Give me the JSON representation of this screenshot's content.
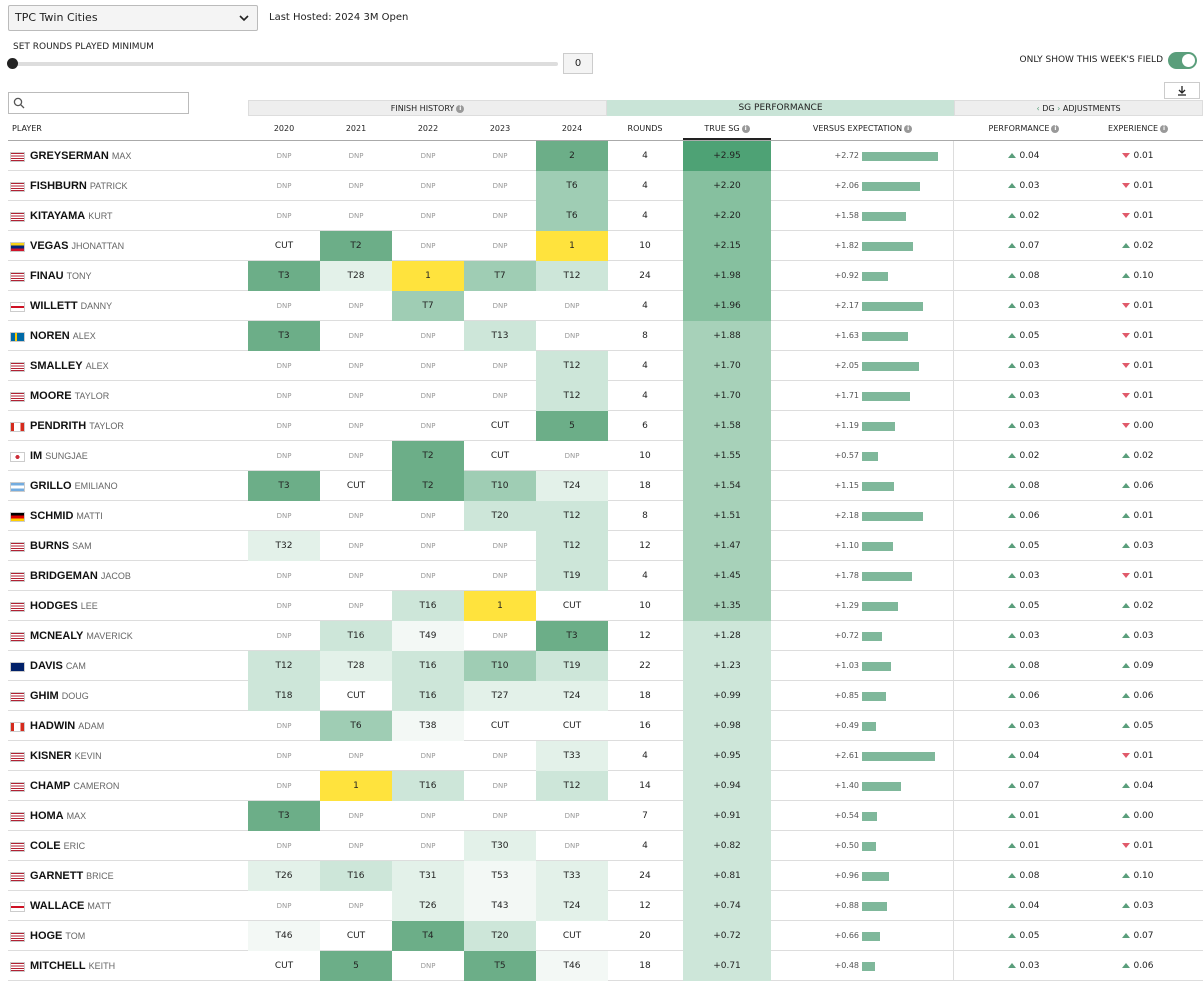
{
  "course_select": {
    "value": "TPC Twin Cities"
  },
  "last_hosted": "Last Hosted: 2024 3M Open",
  "rounds_min": {
    "label": "SET ROUNDS PLAYED MINIMUM",
    "value": "0"
  },
  "field_toggle": {
    "label": "ONLY SHOW THIS WEEK'S FIELD",
    "on": true
  },
  "search": {
    "placeholder": ""
  },
  "groups": {
    "finish_history": "FINISH HISTORY",
    "sg_performance": "SG PERFORMANCE",
    "dg_adjustments": "DG",
    "adjustments_suffix": "ADJUSTMENTS"
  },
  "columns": {
    "player": "PLAYER",
    "y2020": "2020",
    "y2021": "2021",
    "y2022": "2022",
    "y2023": "2023",
    "y2024": "2024",
    "rounds": "ROUNDS",
    "true_sg": "TRUE SG",
    "versus": "VERSUS EXPECTATION",
    "performance": "PERFORMANCE",
    "experience": "EXPERIENCE"
  },
  "colors": {
    "accent": "#5a9e7b",
    "win": "#ffe33d",
    "down": "#e05a6a"
  },
  "rows": [
    {
      "last": "GREYSERMAN",
      "first": "MAX",
      "flag": "us",
      "finishes": [
        "DNP",
        "DNP",
        "DNP",
        "DNP",
        "2"
      ],
      "rounds": "4",
      "sg": "+2.95",
      "vs": "+2.72",
      "vs_val": 2.72,
      "perf": "0.04",
      "perf_dir": "up",
      "exp": "0.01",
      "exp_dir": "down"
    },
    {
      "last": "FISHBURN",
      "first": "PATRICK",
      "flag": "us",
      "finishes": [
        "DNP",
        "DNP",
        "DNP",
        "DNP",
        "T6"
      ],
      "rounds": "4",
      "sg": "+2.20",
      "vs": "+2.06",
      "vs_val": 2.06,
      "perf": "0.03",
      "perf_dir": "up",
      "exp": "0.01",
      "exp_dir": "down"
    },
    {
      "last": "KITAYAMA",
      "first": "KURT",
      "flag": "us",
      "finishes": [
        "DNP",
        "DNP",
        "DNP",
        "DNP",
        "T6"
      ],
      "rounds": "4",
      "sg": "+2.20",
      "vs": "+1.58",
      "vs_val": 1.58,
      "perf": "0.02",
      "perf_dir": "up",
      "exp": "0.01",
      "exp_dir": "down"
    },
    {
      "last": "VEGAS",
      "first": "JHONATTAN",
      "flag": "ve",
      "finishes": [
        "CUT",
        "T2",
        "DNP",
        "DNP",
        "1"
      ],
      "rounds": "10",
      "sg": "+2.15",
      "vs": "+1.82",
      "vs_val": 1.82,
      "perf": "0.07",
      "perf_dir": "up",
      "exp": "0.02",
      "exp_dir": "up"
    },
    {
      "last": "FINAU",
      "first": "TONY",
      "flag": "us",
      "finishes": [
        "T3",
        "T28",
        "1",
        "T7",
        "T12"
      ],
      "rounds": "24",
      "sg": "+1.98",
      "vs": "+0.92",
      "vs_val": 0.92,
      "perf": "0.08",
      "perf_dir": "up",
      "exp": "0.10",
      "exp_dir": "up"
    },
    {
      "last": "WILLETT",
      "first": "DANNY",
      "flag": "en",
      "finishes": [
        "DNP",
        "DNP",
        "T7",
        "DNP",
        "DNP"
      ],
      "rounds": "4",
      "sg": "+1.96",
      "vs": "+2.17",
      "vs_val": 2.17,
      "perf": "0.03",
      "perf_dir": "up",
      "exp": "0.01",
      "exp_dir": "down"
    },
    {
      "last": "NOREN",
      "first": "ALEX",
      "flag": "se",
      "finishes": [
        "T3",
        "DNP",
        "DNP",
        "T13",
        "DNP"
      ],
      "rounds": "8",
      "sg": "+1.88",
      "vs": "+1.63",
      "vs_val": 1.63,
      "perf": "0.05",
      "perf_dir": "up",
      "exp": "0.01",
      "exp_dir": "down"
    },
    {
      "last": "SMALLEY",
      "first": "ALEX",
      "flag": "us",
      "finishes": [
        "DNP",
        "DNP",
        "DNP",
        "DNP",
        "T12"
      ],
      "rounds": "4",
      "sg": "+1.70",
      "vs": "+2.05",
      "vs_val": 2.05,
      "perf": "0.03",
      "perf_dir": "up",
      "exp": "0.01",
      "exp_dir": "down"
    },
    {
      "last": "MOORE",
      "first": "TAYLOR",
      "flag": "us",
      "finishes": [
        "DNP",
        "DNP",
        "DNP",
        "DNP",
        "T12"
      ],
      "rounds": "4",
      "sg": "+1.70",
      "vs": "+1.71",
      "vs_val": 1.71,
      "perf": "0.03",
      "perf_dir": "up",
      "exp": "0.01",
      "exp_dir": "down"
    },
    {
      "last": "PENDRITH",
      "first": "TAYLOR",
      "flag": "ca",
      "finishes": [
        "DNP",
        "DNP",
        "DNP",
        "CUT",
        "5"
      ],
      "rounds": "6",
      "sg": "+1.58",
      "vs": "+1.19",
      "vs_val": 1.19,
      "perf": "0.03",
      "perf_dir": "up",
      "exp": "0.00",
      "exp_dir": "down"
    },
    {
      "last": "IM",
      "first": "SUNGJAE",
      "flag": "kr",
      "finishes": [
        "DNP",
        "DNP",
        "T2",
        "CUT",
        "DNP"
      ],
      "rounds": "10",
      "sg": "+1.55",
      "vs": "+0.57",
      "vs_val": 0.57,
      "perf": "0.02",
      "perf_dir": "up",
      "exp": "0.02",
      "exp_dir": "up"
    },
    {
      "last": "GRILLO",
      "first": "EMILIANO",
      "flag": "ar",
      "finishes": [
        "T3",
        "CUT",
        "T2",
        "T10",
        "T24"
      ],
      "rounds": "18",
      "sg": "+1.54",
      "vs": "+1.15",
      "vs_val": 1.15,
      "perf": "0.08",
      "perf_dir": "up",
      "exp": "0.06",
      "exp_dir": "up"
    },
    {
      "last": "SCHMID",
      "first": "MATTI",
      "flag": "de",
      "finishes": [
        "DNP",
        "DNP",
        "DNP",
        "T20",
        "T12"
      ],
      "rounds": "8",
      "sg": "+1.51",
      "vs": "+2.18",
      "vs_val": 2.18,
      "perf": "0.06",
      "perf_dir": "up",
      "exp": "0.01",
      "exp_dir": "up"
    },
    {
      "last": "BURNS",
      "first": "SAM",
      "flag": "us",
      "finishes": [
        "T32",
        "DNP",
        "DNP",
        "DNP",
        "T12"
      ],
      "rounds": "12",
      "sg": "+1.47",
      "vs": "+1.10",
      "vs_val": 1.1,
      "perf": "0.05",
      "perf_dir": "up",
      "exp": "0.03",
      "exp_dir": "up"
    },
    {
      "last": "BRIDGEMAN",
      "first": "JACOB",
      "flag": "us",
      "finishes": [
        "DNP",
        "DNP",
        "DNP",
        "DNP",
        "T19"
      ],
      "rounds": "4",
      "sg": "+1.45",
      "vs": "+1.78",
      "vs_val": 1.78,
      "perf": "0.03",
      "perf_dir": "up",
      "exp": "0.01",
      "exp_dir": "down"
    },
    {
      "last": "HODGES",
      "first": "LEE",
      "flag": "us",
      "finishes": [
        "DNP",
        "DNP",
        "T16",
        "1",
        "CUT"
      ],
      "rounds": "10",
      "sg": "+1.35",
      "vs": "+1.29",
      "vs_val": 1.29,
      "perf": "0.05",
      "perf_dir": "up",
      "exp": "0.02",
      "exp_dir": "up"
    },
    {
      "last": "MCNEALY",
      "first": "MAVERICK",
      "flag": "us",
      "finishes": [
        "DNP",
        "T16",
        "T49",
        "DNP",
        "T3"
      ],
      "rounds": "12",
      "sg": "+1.28",
      "vs": "+0.72",
      "vs_val": 0.72,
      "perf": "0.03",
      "perf_dir": "up",
      "exp": "0.03",
      "exp_dir": "up"
    },
    {
      "last": "DAVIS",
      "first": "CAM",
      "flag": "au",
      "finishes": [
        "T12",
        "T28",
        "T16",
        "T10",
        "T19"
      ],
      "rounds": "22",
      "sg": "+1.23",
      "vs": "+1.03",
      "vs_val": 1.03,
      "perf": "0.08",
      "perf_dir": "up",
      "exp": "0.09",
      "exp_dir": "up"
    },
    {
      "last": "GHIM",
      "first": "DOUG",
      "flag": "us",
      "finishes": [
        "T18",
        "CUT",
        "T16",
        "T27",
        "T24"
      ],
      "rounds": "18",
      "sg": "+0.99",
      "vs": "+0.85",
      "vs_val": 0.85,
      "perf": "0.06",
      "perf_dir": "up",
      "exp": "0.06",
      "exp_dir": "up"
    },
    {
      "last": "HADWIN",
      "first": "ADAM",
      "flag": "ca",
      "finishes": [
        "DNP",
        "T6",
        "T38",
        "CUT",
        "CUT"
      ],
      "rounds": "16",
      "sg": "+0.98",
      "vs": "+0.49",
      "vs_val": 0.49,
      "perf": "0.03",
      "perf_dir": "up",
      "exp": "0.05",
      "exp_dir": "up"
    },
    {
      "last": "KISNER",
      "first": "KEVIN",
      "flag": "us",
      "finishes": [
        "DNP",
        "DNP",
        "DNP",
        "DNP",
        "T33"
      ],
      "rounds": "4",
      "sg": "+0.95",
      "vs": "+2.61",
      "vs_val": 2.61,
      "perf": "0.04",
      "perf_dir": "up",
      "exp": "0.01",
      "exp_dir": "down"
    },
    {
      "last": "CHAMP",
      "first": "CAMERON",
      "flag": "us",
      "finishes": [
        "DNP",
        "1",
        "T16",
        "DNP",
        "T12"
      ],
      "rounds": "14",
      "sg": "+0.94",
      "vs": "+1.40",
      "vs_val": 1.4,
      "perf": "0.07",
      "perf_dir": "up",
      "exp": "0.04",
      "exp_dir": "up"
    },
    {
      "last": "HOMA",
      "first": "MAX",
      "flag": "us",
      "finishes": [
        "T3",
        "DNP",
        "DNP",
        "DNP",
        "DNP"
      ],
      "rounds": "7",
      "sg": "+0.91",
      "vs": "+0.54",
      "vs_val": 0.54,
      "perf": "0.01",
      "perf_dir": "up",
      "exp": "0.00",
      "exp_dir": "up"
    },
    {
      "last": "COLE",
      "first": "ERIC",
      "flag": "us",
      "finishes": [
        "DNP",
        "DNP",
        "DNP",
        "T30",
        "DNP"
      ],
      "rounds": "4",
      "sg": "+0.82",
      "vs": "+0.50",
      "vs_val": 0.5,
      "perf": "0.01",
      "perf_dir": "up",
      "exp": "0.01",
      "exp_dir": "down"
    },
    {
      "last": "GARNETT",
      "first": "BRICE",
      "flag": "us",
      "finishes": [
        "T26",
        "T16",
        "T31",
        "T53",
        "T33"
      ],
      "rounds": "24",
      "sg": "+0.81",
      "vs": "+0.96",
      "vs_val": 0.96,
      "perf": "0.08",
      "perf_dir": "up",
      "exp": "0.10",
      "exp_dir": "up"
    },
    {
      "last": "WALLACE",
      "first": "MATT",
      "flag": "en",
      "finishes": [
        "DNP",
        "DNP",
        "T26",
        "T43",
        "T24"
      ],
      "rounds": "12",
      "sg": "+0.74",
      "vs": "+0.88",
      "vs_val": 0.88,
      "perf": "0.04",
      "perf_dir": "up",
      "exp": "0.03",
      "exp_dir": "up"
    },
    {
      "last": "HOGE",
      "first": "TOM",
      "flag": "us",
      "finishes": [
        "T46",
        "CUT",
        "T4",
        "T20",
        "CUT"
      ],
      "rounds": "20",
      "sg": "+0.72",
      "vs": "+0.66",
      "vs_val": 0.66,
      "perf": "0.05",
      "perf_dir": "up",
      "exp": "0.07",
      "exp_dir": "up"
    },
    {
      "last": "MITCHELL",
      "first": "KEITH",
      "flag": "us",
      "finishes": [
        "CUT",
        "5",
        "DNP",
        "T5",
        "T46"
      ],
      "rounds": "18",
      "sg": "+0.71",
      "vs": "+0.48",
      "vs_val": 0.48,
      "perf": "0.03",
      "perf_dir": "up",
      "exp": "0.06",
      "exp_dir": "up"
    }
  ]
}
